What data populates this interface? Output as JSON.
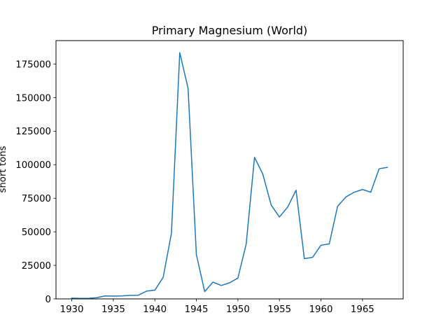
{
  "chart_data": {
    "type": "line",
    "title": "Primary Magnesium (World)",
    "xlabel": "",
    "ylabel": "short tons",
    "xlim": [
      1928.1,
      1969.9
    ],
    "ylim": [
      0,
      192500
    ],
    "xticks": [
      1930,
      1935,
      1940,
      1945,
      1950,
      1955,
      1960,
      1965
    ],
    "yticks": [
      0,
      25000,
      50000,
      75000,
      100000,
      125000,
      150000,
      175000
    ],
    "grid": false,
    "line_color": "#1f77b4",
    "series": [
      {
        "x": [
          1930,
          1931,
          1932,
          1933,
          1934,
          1935,
          1936,
          1937,
          1938,
          1939,
          1940,
          1941,
          1942,
          1943,
          1944,
          1945,
          1946,
          1947,
          1948,
          1949,
          1950,
          1951,
          1952,
          1953,
          1954,
          1955,
          1956,
          1957,
          1958,
          1959,
          1960,
          1961,
          1962,
          1963,
          1964,
          1965,
          1966,
          1967,
          1968
        ],
        "y": [
          600,
          400,
          400,
          900,
          2200,
          2100,
          2200,
          2600,
          2700,
          5800,
          6500,
          16000,
          49000,
          183500,
          157000,
          33000,
          5500,
          12500,
          10000,
          12000,
          15500,
          41000,
          105500,
          93000,
          70000,
          61000,
          68500,
          81000,
          30000,
          31000,
          40000,
          41000,
          69000,
          76000,
          79500,
          81500,
          79500,
          97000,
          98000
        ]
      }
    ]
  }
}
